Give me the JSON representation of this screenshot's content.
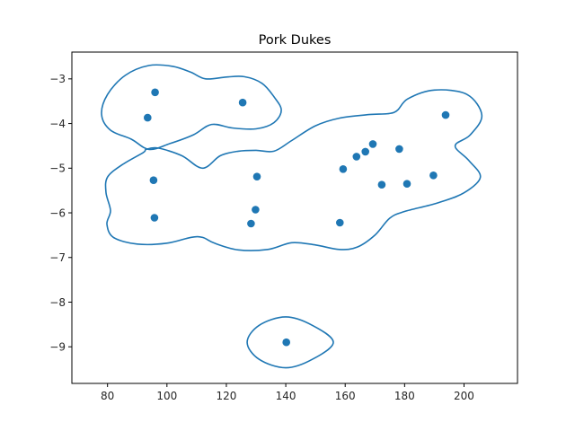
{
  "chart_data": {
    "type": "scatter",
    "title": "Pork Dukes",
    "xlabel": "",
    "ylabel": "",
    "xlim": [
      68,
      218
    ],
    "ylim": [
      -9.82,
      -2.4
    ],
    "xticks": [
      80,
      100,
      120,
      140,
      160,
      180,
      200
    ],
    "yticks": [
      -3,
      -4,
      -5,
      -6,
      -7,
      -8,
      -9
    ],
    "grid": false,
    "colors": {
      "marker": "#1f77b4",
      "contour": "#1f77b4",
      "axes": "#000000"
    },
    "points": [
      {
        "x": 96,
        "y": -3.3
      },
      {
        "x": 93.5,
        "y": -3.87
      },
      {
        "x": 125.5,
        "y": -3.53
      },
      {
        "x": 95.5,
        "y": -5.27
      },
      {
        "x": 95.8,
        "y": -6.11
      },
      {
        "x": 130.3,
        "y": -5.19
      },
      {
        "x": 129.8,
        "y": -5.93
      },
      {
        "x": 128.3,
        "y": -6.24
      },
      {
        "x": 159.3,
        "y": -5.02
      },
      {
        "x": 163.8,
        "y": -4.74
      },
      {
        "x": 166.8,
        "y": -4.63
      },
      {
        "x": 169.3,
        "y": -4.46
      },
      {
        "x": 178.2,
        "y": -4.57
      },
      {
        "x": 172.3,
        "y": -5.37
      },
      {
        "x": 180.8,
        "y": -5.35
      },
      {
        "x": 189.7,
        "y": -5.16
      },
      {
        "x": 193.8,
        "y": -3.81
      },
      {
        "x": 158.2,
        "y": -6.22
      },
      {
        "x": 140.2,
        "y": -8.9
      }
    ],
    "contours": [
      [
        [
          80,
          -3.35
        ],
        [
          86,
          -2.92
        ],
        [
          94,
          -2.7
        ],
        [
          102,
          -2.72
        ],
        [
          108,
          -2.85
        ],
        [
          113,
          -3.0
        ],
        [
          120,
          -2.96
        ],
        [
          126,
          -2.95
        ],
        [
          132,
          -3.1
        ],
        [
          136,
          -3.4
        ],
        [
          138.5,
          -3.7
        ],
        [
          136,
          -3.98
        ],
        [
          130,
          -4.12
        ],
        [
          122,
          -4.1
        ],
        [
          115,
          -4.02
        ],
        [
          109,
          -4.25
        ],
        [
          101,
          -4.45
        ],
        [
          94,
          -4.58
        ],
        [
          88,
          -4.35
        ],
        [
          81,
          -4.15
        ],
        [
          78,
          -3.8
        ],
        [
          80,
          -3.35
        ]
      ],
      [
        [
          92,
          -4.65
        ],
        [
          85,
          -4.92
        ],
        [
          80,
          -5.2
        ],
        [
          79.5,
          -5.55
        ],
        [
          81,
          -5.95
        ],
        [
          79.8,
          -6.25
        ],
        [
          82,
          -6.55
        ],
        [
          90,
          -6.7
        ],
        [
          100,
          -6.68
        ],
        [
          108,
          -6.55
        ],
        [
          112,
          -6.55
        ],
        [
          116,
          -6.68
        ],
        [
          124,
          -6.83
        ],
        [
          134,
          -6.82
        ],
        [
          142,
          -6.67
        ],
        [
          150,
          -6.72
        ],
        [
          158,
          -6.82
        ],
        [
          164,
          -6.77
        ],
        [
          170,
          -6.5
        ],
        [
          175,
          -6.12
        ],
        [
          180,
          -5.97
        ],
        [
          191,
          -5.78
        ],
        [
          200,
          -5.55
        ],
        [
          205.5,
          -5.2
        ],
        [
          201.5,
          -4.82
        ],
        [
          197,
          -4.5
        ],
        [
          202,
          -4.26
        ],
        [
          206,
          -3.82
        ],
        [
          201,
          -3.35
        ],
        [
          190,
          -3.25
        ],
        [
          181,
          -3.45
        ],
        [
          176.5,
          -3.75
        ],
        [
          168,
          -3.8
        ],
        [
          158,
          -3.88
        ],
        [
          150,
          -4.05
        ],
        [
          142,
          -4.38
        ],
        [
          136,
          -4.62
        ],
        [
          130,
          -4.6
        ],
        [
          124,
          -4.62
        ],
        [
          118,
          -4.72
        ],
        [
          112,
          -5.0
        ],
        [
          105,
          -4.72
        ],
        [
          97,
          -4.55
        ],
        [
          93,
          -4.58
        ],
        [
          92,
          -4.65
        ]
      ],
      [
        [
          127,
          -8.9
        ],
        [
          131,
          -8.52
        ],
        [
          140,
          -8.33
        ],
        [
          149,
          -8.52
        ],
        [
          156,
          -8.9
        ],
        [
          149,
          -9.28
        ],
        [
          140,
          -9.47
        ],
        [
          131,
          -9.28
        ],
        [
          127,
          -8.9
        ]
      ]
    ]
  }
}
